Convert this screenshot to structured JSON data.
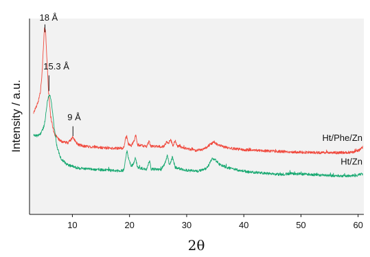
{
  "chart_data": {
    "type": "line",
    "xlabel": "2θ",
    "ylabel": "Intensity / a.u.",
    "xlim": [
      2.5,
      61
    ],
    "ylim": [
      0,
      100
    ],
    "x_ticks": [
      10,
      20,
      30,
      40,
      50,
      60
    ],
    "grid": false,
    "legend": "inline labels at right end of each series",
    "y_tick_labels": "none",
    "series": [
      {
        "name": "Ht/Phe/Zn",
        "color": "#f0483c",
        "baseline": 20,
        "noise": 0.7,
        "points": [
          [
            3.2,
            51.8
          ],
          [
            4.0,
            57.5
          ],
          [
            4.4,
            62.5
          ],
          [
            4.7,
            72.0
          ],
          [
            4.9,
            84.0
          ],
          [
            5.1,
            95.0
          ],
          [
            5.3,
            94.0
          ],
          [
            5.5,
            82.0
          ],
          [
            5.8,
            64.0
          ],
          [
            6.2,
            50.0
          ],
          [
            6.8,
            41.5
          ],
          [
            7.5,
            38.5
          ],
          [
            8.3,
            37.0
          ],
          [
            9.2,
            36.5
          ],
          [
            9.8,
            38.2
          ],
          [
            10.1,
            39.5
          ],
          [
            10.4,
            37.8
          ],
          [
            11.0,
            35.6
          ],
          [
            12.0,
            34.9
          ],
          [
            14.0,
            34.3
          ],
          [
            17.0,
            33.7
          ],
          [
            19.0,
            33.9
          ],
          [
            19.3,
            38.5
          ],
          [
            19.5,
            40.0
          ],
          [
            19.8,
            36.0
          ],
          [
            20.3,
            35.0
          ],
          [
            20.8,
            37.5
          ],
          [
            21.1,
            40.5
          ],
          [
            21.4,
            35.5
          ],
          [
            23.0,
            34.6
          ],
          [
            23.4,
            37.5
          ],
          [
            23.7,
            34.8
          ],
          [
            26.0,
            34.6
          ],
          [
            26.5,
            37.2
          ],
          [
            26.8,
            36.5
          ],
          [
            27.2,
            38.0
          ],
          [
            27.6,
            35.2
          ],
          [
            28.0,
            37.5
          ],
          [
            28.4,
            34.8
          ],
          [
            30.0,
            33.6
          ],
          [
            31.5,
            32.8
          ],
          [
            33.0,
            33.2
          ],
          [
            34.2,
            36.0
          ],
          [
            34.8,
            37.0
          ],
          [
            35.5,
            35.4
          ],
          [
            36.5,
            34.5
          ],
          [
            38.0,
            33.6
          ],
          [
            40.0,
            33.0
          ],
          [
            45.0,
            32.3
          ],
          [
            50.0,
            31.7
          ],
          [
            55.0,
            31.5
          ],
          [
            59.0,
            31.6
          ],
          [
            60.2,
            32.8
          ],
          [
            60.8,
            34.3
          ]
        ]
      },
      {
        "name": "Ht/Zn",
        "color": "#16a870",
        "baseline": 10,
        "noise": 0.7,
        "points": [
          [
            3.2,
            40.5
          ],
          [
            4.0,
            40.0
          ],
          [
            4.6,
            42.0
          ],
          [
            5.1,
            45.5
          ],
          [
            5.5,
            55.0
          ],
          [
            5.8,
            60.5
          ],
          [
            6.1,
            61.0
          ],
          [
            6.4,
            55.5
          ],
          [
            6.8,
            45.0
          ],
          [
            7.3,
            34.5
          ],
          [
            8.0,
            28.5
          ],
          [
            9.0,
            25.5
          ],
          [
            10.5,
            24.0
          ],
          [
            12.0,
            23.4
          ],
          [
            15.0,
            22.8
          ],
          [
            18.0,
            22.2
          ],
          [
            19.0,
            22.5
          ],
          [
            19.4,
            30.0
          ],
          [
            19.6,
            32.5
          ],
          [
            19.8,
            29.0
          ],
          [
            20.3,
            24.5
          ],
          [
            20.8,
            26.5
          ],
          [
            21.0,
            29.0
          ],
          [
            21.4,
            24.0
          ],
          [
            23.0,
            23.0
          ],
          [
            23.5,
            27.5
          ],
          [
            23.8,
            23.2
          ],
          [
            25.5,
            22.8
          ],
          [
            26.2,
            26.0
          ],
          [
            26.6,
            30.0
          ],
          [
            27.0,
            25.0
          ],
          [
            27.5,
            29.5
          ],
          [
            28.0,
            24.0
          ],
          [
            29.0,
            23.2
          ],
          [
            30.0,
            22.5
          ],
          [
            32.0,
            22.0
          ],
          [
            33.5,
            23.5
          ],
          [
            34.5,
            28.5
          ],
          [
            35.0,
            27.8
          ],
          [
            35.8,
            25.5
          ],
          [
            37.0,
            24.0
          ],
          [
            39.0,
            22.6
          ],
          [
            41.0,
            21.6
          ],
          [
            44.0,
            20.9
          ],
          [
            46.5,
            20.4
          ],
          [
            48.0,
            20.8
          ],
          [
            51.0,
            20.5
          ],
          [
            54.0,
            20.0
          ],
          [
            57.0,
            19.6
          ],
          [
            59.5,
            19.8
          ],
          [
            60.8,
            20.6
          ]
        ]
      }
    ],
    "annotations": [
      {
        "text": "18 Å",
        "x": 5.2,
        "tick_top": 97,
        "tick_bottom": 93,
        "label_y": 99
      },
      {
        "text": "15.3 Å",
        "x": 5.9,
        "tick_top": 71,
        "tick_bottom": 63,
        "label_y": 74
      },
      {
        "text": "9 Å",
        "x": 10.1,
        "tick_top": 45,
        "tick_bottom": 40,
        "label_y": 48
      }
    ]
  }
}
